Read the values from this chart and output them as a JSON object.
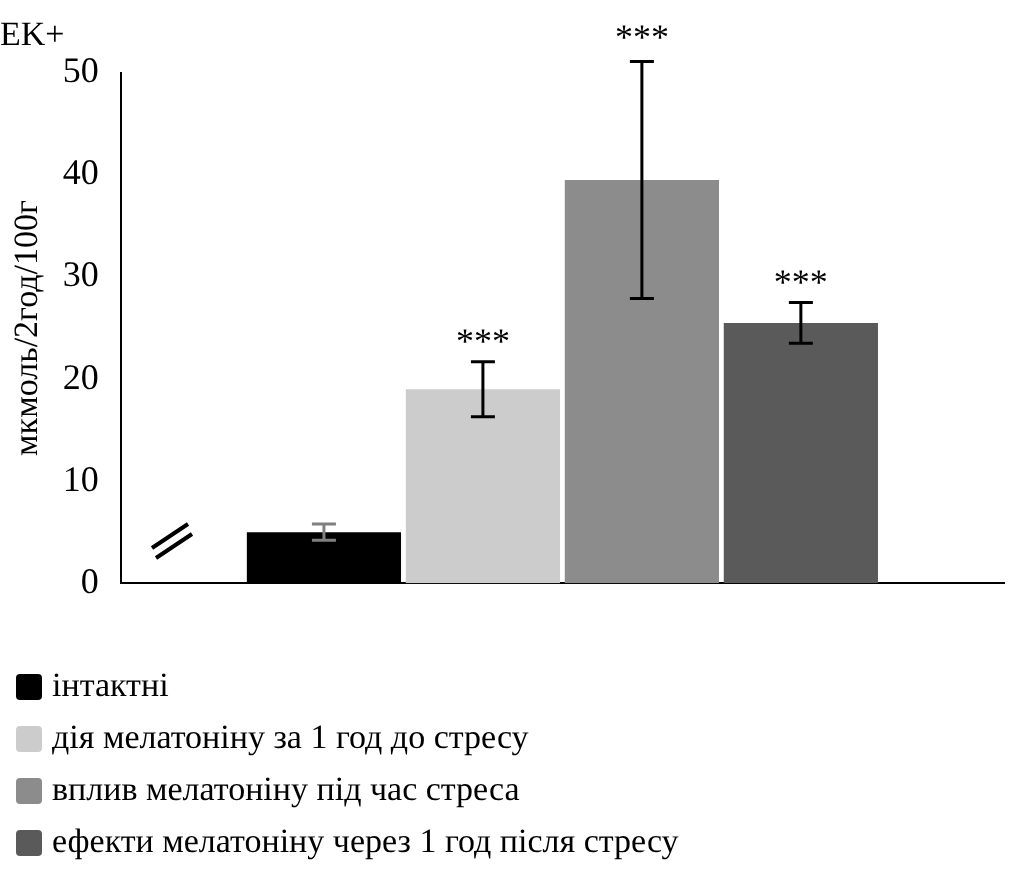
{
  "chart_data": {
    "type": "bar",
    "title": "EK+",
    "ylabel": "мкмоль/2год/100г",
    "categories": [
      null
    ],
    "series": [
      {
        "name": "інтактні",
        "color": "#000000",
        "values": [
          5
        ],
        "errors": [
          0.8
        ]
      },
      {
        "name": "дія мелатоніну за 1 год до стресу",
        "color": "#cccccc",
        "values": [
          19
        ],
        "errors": [
          2.7
        ],
        "value_labels": [
          "***"
        ]
      },
      {
        "name": "вплив мелатоніну під час стреса",
        "color": "#8c8c8c",
        "values": [
          39.5
        ],
        "errors": [
          11.6
        ]
      },
      {
        "name": "ефекти мелатоніну через 1 год після стресу",
        "color": "#5a5a5a",
        "values": [
          25.5
        ],
        "errors": [
          2
        ],
        "value_labels": [
          "***"
        ]
      }
    ],
    "ylim": [
      0,
      50
    ],
    "yticks": [
      0,
      10,
      20,
      30,
      40,
      50
    ],
    "annotations": [
      {
        "text": "***",
        "y": 51.5
      }
    ],
    "grid": false,
    "legend": "bottom"
  }
}
